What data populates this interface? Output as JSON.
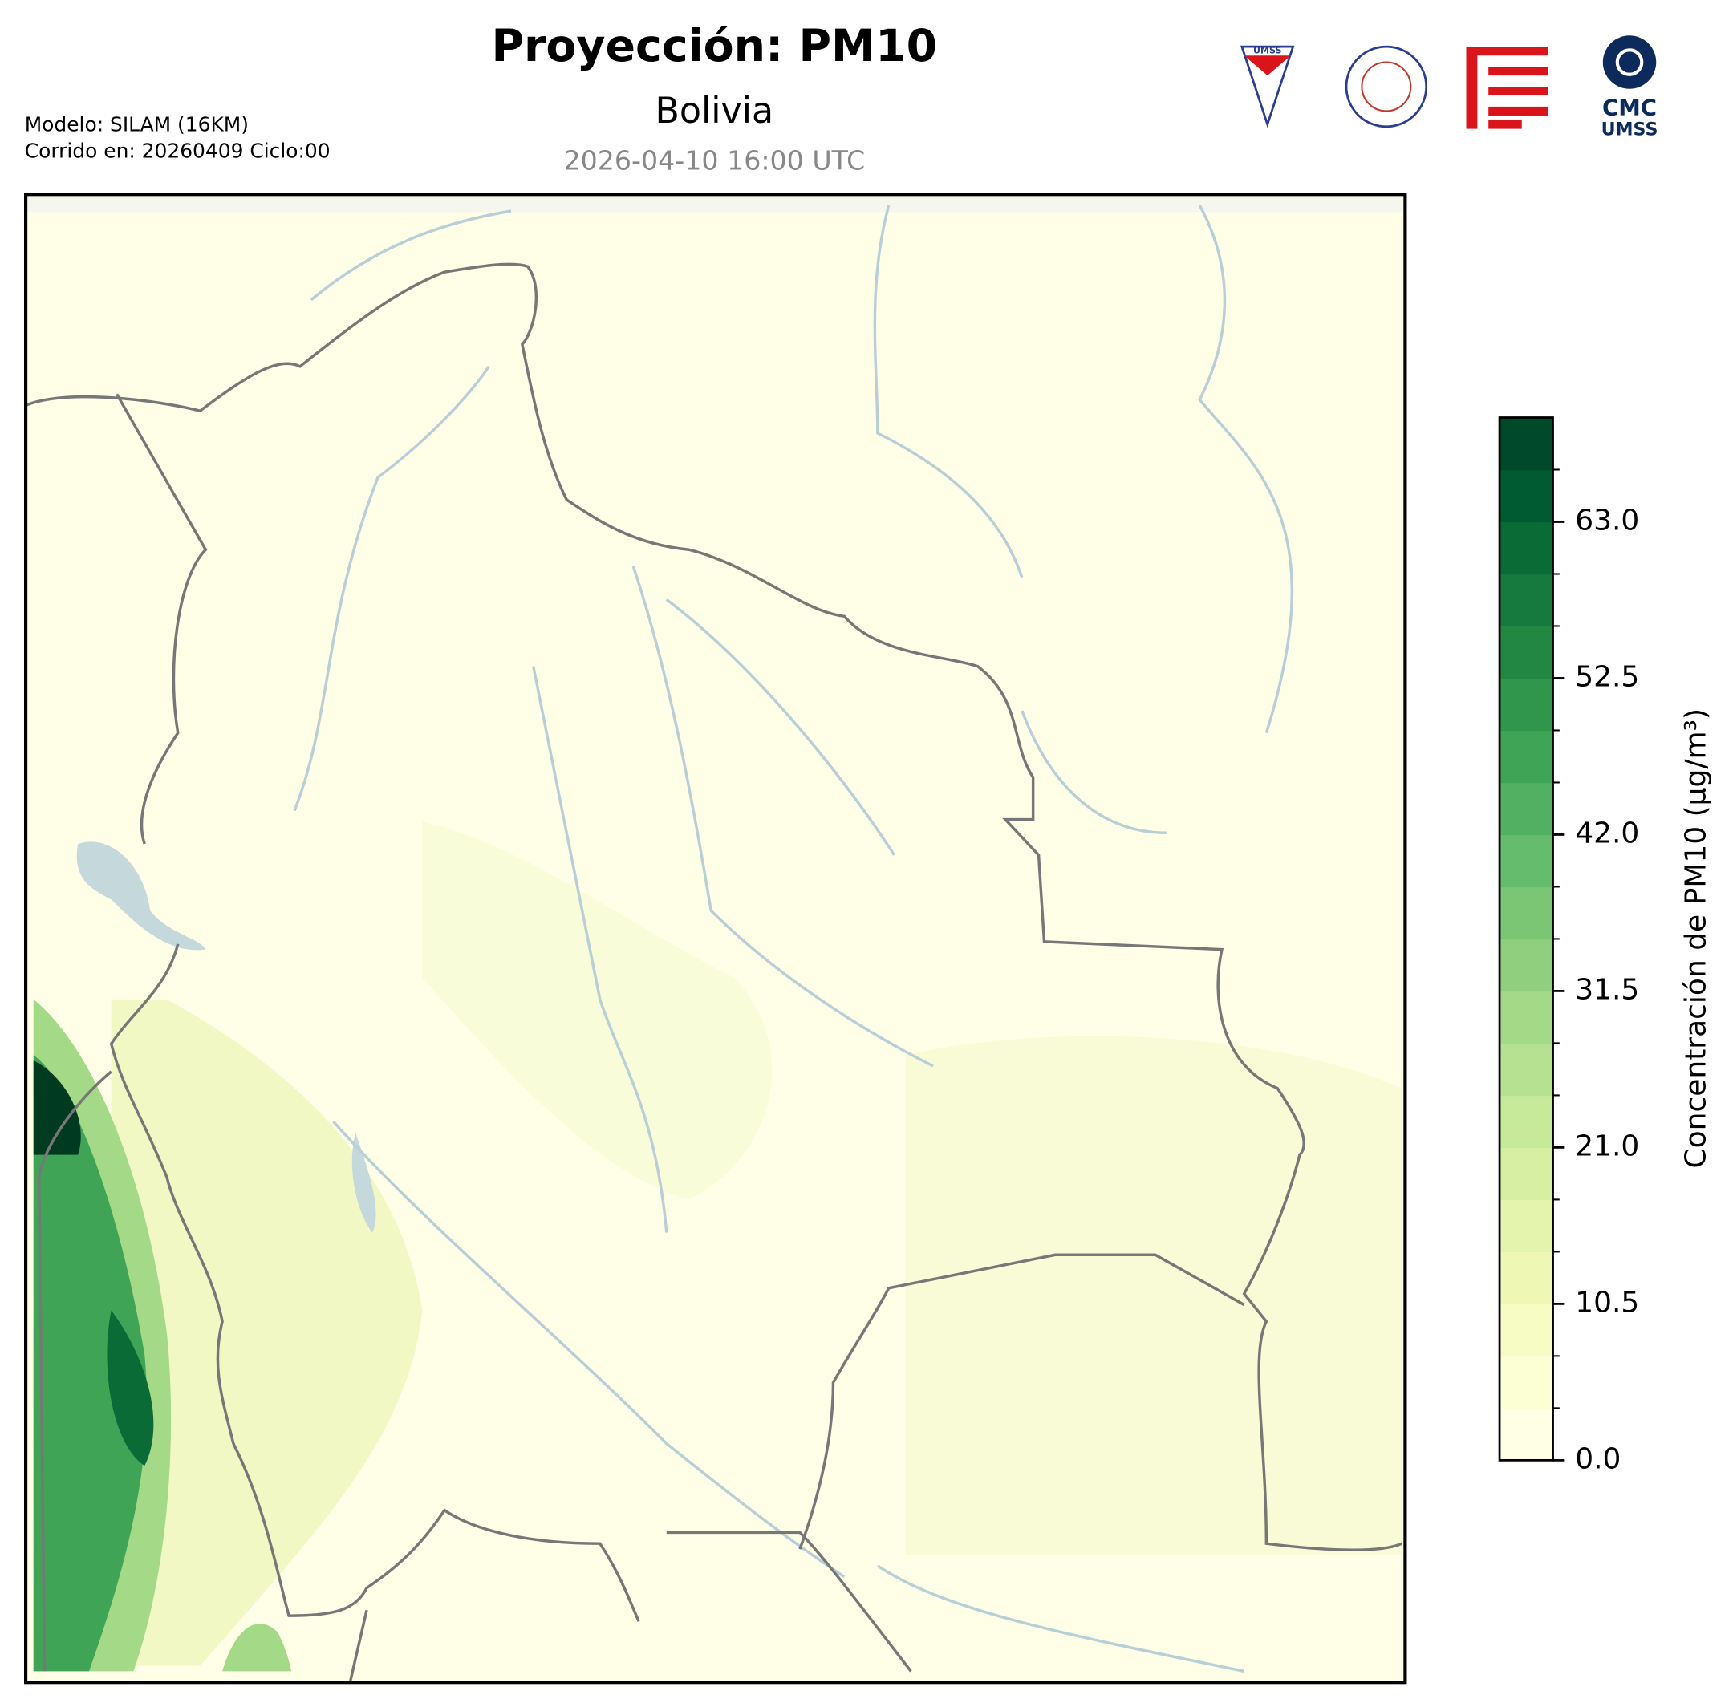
{
  "header": {
    "title": "Proyección: PM10",
    "subtitle": "Bolivia",
    "valid_time": "2026-04-10 16:00 UTC",
    "model": "Modelo: SILAM (16KM)",
    "run": "Corrido en: 20260409 Ciclo:00"
  },
  "logos": {
    "umss": "UMSS",
    "cmc": "CMC",
    "cmc_sub": "UMSS"
  },
  "colorbar": {
    "label": "Concentración de PM10 (µg/m³)",
    "lim": [
      0,
      70
    ],
    "ticks": [
      {
        "value": 0,
        "label": "0.0"
      },
      10.5,
      {
        "value": 21,
        "label": "21.0"
      },
      31.5,
      {
        "value": 42,
        "label": "42.0"
      },
      52.5,
      {
        "value": 63,
        "label": "63.0"
      }
    ],
    "colors": [
      "#ffffe5",
      "#fcfed4",
      "#f7fcc4",
      "#eef8b4",
      "#e4f4ac",
      "#d6efa3",
      "#c6e99a",
      "#b5e191",
      "#a3d987",
      "#8fcf7e",
      "#7bc675",
      "#66bc6d",
      "#52b062",
      "#3fa456",
      "#2f964c",
      "#238744",
      "#16793e",
      "#0a6b37",
      "#005a32",
      "#00492a"
    ]
  }
}
